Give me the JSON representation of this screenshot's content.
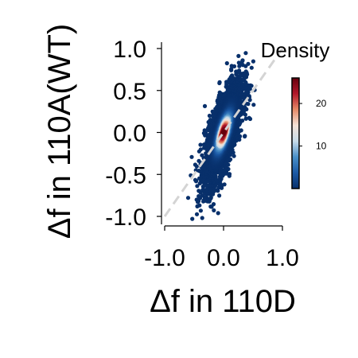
{
  "chart_data": {
    "type": "scatter",
    "xlabel": "Δf in 110D",
    "ylabel": "Δf in 110A(WT)",
    "xlim": [
      -1.0,
      1.0
    ],
    "ylim": [
      -1.0,
      1.0
    ],
    "x_ticks": [
      -1.0,
      0.0,
      1.0
    ],
    "x_tick_labels": [
      "-1.0",
      "0.0",
      "1.0"
    ],
    "y_ticks": [
      -1.0,
      -0.5,
      0.0,
      0.5,
      1.0
    ],
    "y_tick_labels": [
      "-1.0",
      "-0.5",
      "0.0",
      "0.5",
      "1.0"
    ],
    "grid": false,
    "reference_line": {
      "style": "dashed",
      "color": "#d4d4d4",
      "x": [
        -1.0,
        1.0
      ],
      "y": [
        -1.0,
        1.0
      ]
    },
    "density_center": {
      "x": 0.0,
      "y": 0.0
    },
    "density_spread": {
      "sx": 0.16,
      "sy": 0.3,
      "correlation": 0.72
    },
    "colorbar": {
      "title": "Density",
      "range": [
        0,
        26
      ],
      "ticks": [
        10,
        20
      ],
      "tick_labels": [
        "10",
        "20"
      ],
      "colors": [
        "#08306b",
        "#1c5aa6",
        "#4a90c8",
        "#c8dcea",
        "#f4e3d7",
        "#e58a68",
        "#b2182b",
        "#67000d"
      ]
    }
  }
}
